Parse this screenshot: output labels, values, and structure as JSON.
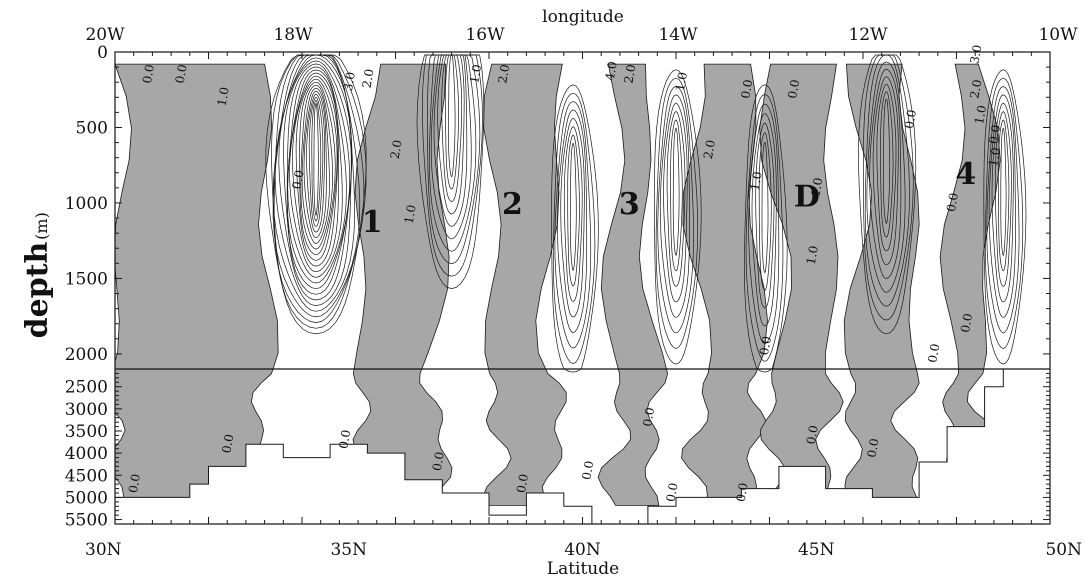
{
  "chart_data": {
    "type": "contour",
    "xlabel_top": "longitude",
    "xlabel_bottom": "Latitude",
    "ylabel": "depth",
    "ylabel_unit": "(m)",
    "top_ticks": [
      "20W",
      "18W",
      "16W",
      "14W",
      "12W",
      "10W"
    ],
    "bottom_ticks": [
      "30N",
      "35N",
      "40N",
      "45N",
      "50N"
    ],
    "depth_ticks_upper": [
      "0",
      "500",
      "1000",
      "1500",
      "2000"
    ],
    "depth_ticks_lower": [
      "2500",
      "3000",
      "3500",
      "4000",
      "4500",
      "5000",
      "5500"
    ],
    "xlim_lat": [
      30,
      50
    ],
    "ylim_depth": [
      0,
      5600
    ],
    "axis_break_depth": 2100,
    "eddy_labels": [
      {
        "text": "1",
        "lat": 35.5,
        "depth": 1120
      },
      {
        "text": "2",
        "lat": 38.5,
        "depth": 1000
      },
      {
        "text": "3",
        "lat": 41.0,
        "depth": 1000
      },
      {
        "text": "D",
        "lat": 44.8,
        "depth": 950
      },
      {
        "text": "4",
        "lat": 48.2,
        "depth": 800
      }
    ],
    "contour_labels": [
      {
        "text": "0.0",
        "lat": 30.8,
        "depth": 150
      },
      {
        "text": "0.0",
        "lat": 31.5,
        "depth": 150
      },
      {
        "text": "1.0",
        "lat": 32.4,
        "depth": 300
      },
      {
        "text": "0.0",
        "lat": 34.0,
        "depth": 850
      },
      {
        "text": "3.0",
        "lat": 35.1,
        "depth": 200
      },
      {
        "text": "2.0",
        "lat": 35.5,
        "depth": 180
      },
      {
        "text": "2.0",
        "lat": 36.1,
        "depth": 650
      },
      {
        "text": "1.0",
        "lat": 36.4,
        "depth": 1080
      },
      {
        "text": "1.0",
        "lat": 37.8,
        "depth": 150
      },
      {
        "text": "2.0",
        "lat": 38.4,
        "depth": 150
      },
      {
        "text": "4.0",
        "lat": 40.7,
        "depth": 130
      },
      {
        "text": "2.0",
        "lat": 41.1,
        "depth": 150
      },
      {
        "text": "1.0",
        "lat": 42.2,
        "depth": 200
      },
      {
        "text": "2.0",
        "lat": 42.8,
        "depth": 650
      },
      {
        "text": "0.0",
        "lat": 43.6,
        "depth": 250
      },
      {
        "text": "1.0",
        "lat": 43.8,
        "depth": 860
      },
      {
        "text": "0.0",
        "lat": 44.6,
        "depth": 250
      },
      {
        "text": "1.0",
        "lat": 45.1,
        "depth": 900
      },
      {
        "text": "1.0",
        "lat": 45.0,
        "depth": 1350
      },
      {
        "text": "0.0",
        "lat": 47.1,
        "depth": 450
      },
      {
        "text": "3.0",
        "lat": 48.5,
        "depth": 20
      },
      {
        "text": "2.0",
        "lat": 48.5,
        "depth": 250
      },
      {
        "text": "1.0",
        "lat": 48.6,
        "depth": 420
      },
      {
        "text": "0.0",
        "lat": 48.9,
        "depth": 550
      },
      {
        "text": "1.0",
        "lat": 48.9,
        "depth": 700
      },
      {
        "text": "0.0",
        "lat": 48.0,
        "depth": 1000
      },
      {
        "text": "0.0",
        "lat": 48.3,
        "depth": 1800
      },
      {
        "text": "0.0",
        "lat": 47.6,
        "depth": 2000
      },
      {
        "text": "0.0",
        "lat": 44.0,
        "depth": 1950
      },
      {
        "text": "0.0",
        "lat": 32.5,
        "depth": 3800
      },
      {
        "text": "0.0",
        "lat": 35.0,
        "depth": 3700
      },
      {
        "text": "0.0",
        "lat": 37.0,
        "depth": 4200
      },
      {
        "text": "0.0",
        "lat": 40.2,
        "depth": 4400
      },
      {
        "text": "0.0",
        "lat": 41.5,
        "depth": 3200
      },
      {
        "text": "0.0",
        "lat": 43.5,
        "depth": 4900
      },
      {
        "text": "0.0",
        "lat": 45.0,
        "depth": 3600
      },
      {
        "text": "0.0",
        "lat": 46.3,
        "depth": 3900
      },
      {
        "text": "0.0",
        "lat": 42.0,
        "depth": 4900
      },
      {
        "text": "0.0",
        "lat": 30.5,
        "depth": 4700
      },
      {
        "text": "0.0",
        "lat": 38.8,
        "depth": 4700
      }
    ],
    "shaded_bands_lat": [
      [
        30.0,
        33.2
      ],
      [
        35.3,
        36.9
      ],
      [
        38.1,
        39.4
      ],
      [
        40.7,
        41.5
      ],
      [
        42.5,
        43.7
      ],
      [
        44.1,
        45.3
      ],
      [
        45.8,
        47.0
      ],
      [
        47.9,
        48.6
      ]
    ],
    "colors": {
      "shade": "#a7a7a7",
      "line": "#1a1a1a",
      "background": "#ffffff"
    }
  }
}
